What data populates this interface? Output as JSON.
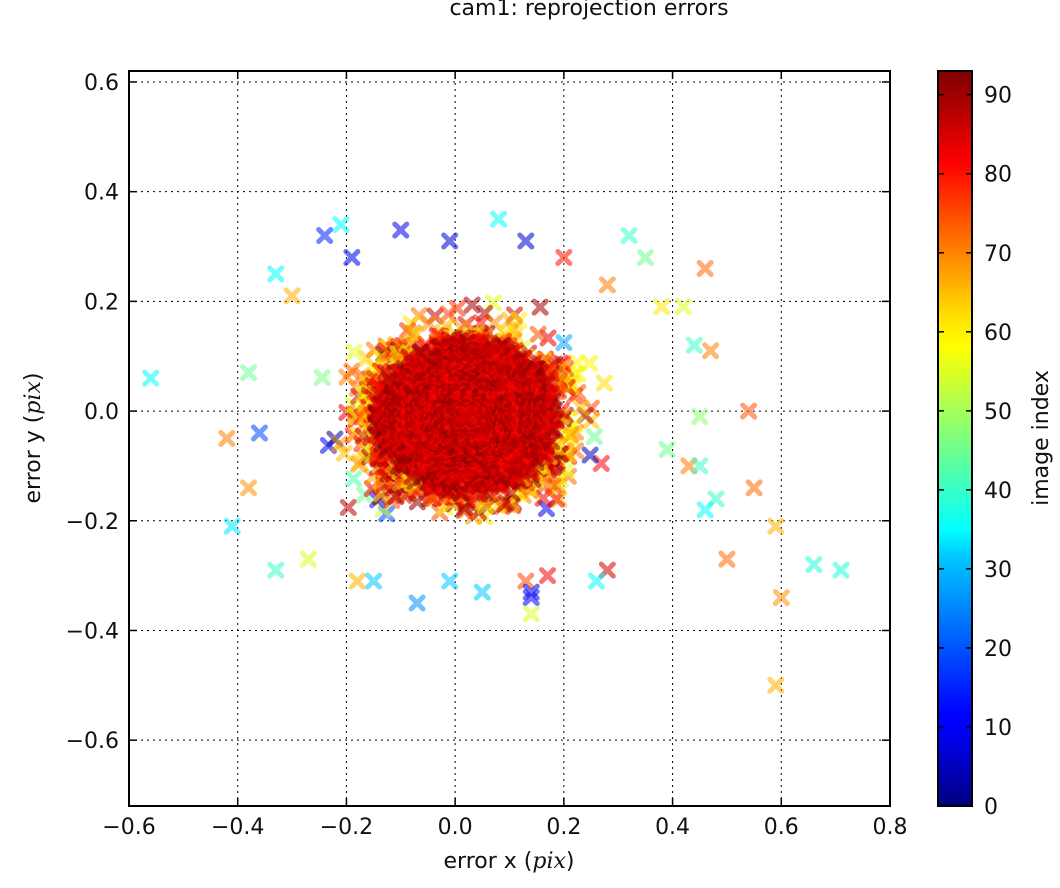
{
  "chart_data": {
    "type": "scatter",
    "title": "cam1: reprojection errors",
    "xlabel_prefix": "error x (",
    "xlabel_unit": "pix",
    "xlabel_suffix": ")",
    "ylabel_prefix": "error y (",
    "ylabel_unit": "pix",
    "ylabel_suffix": ")",
    "xlim": [
      -0.6,
      0.8
    ],
    "ylim": [
      -0.72,
      0.62
    ],
    "xticks": [
      "−0.6",
      "−0.4",
      "−0.2",
      "0.0",
      "0.2",
      "0.4",
      "0.6",
      "0.8"
    ],
    "xtick_values": [
      -0.6,
      -0.4,
      -0.2,
      0.0,
      0.2,
      0.4,
      0.6,
      0.8
    ],
    "yticks": [
      "0.6",
      "0.4",
      "0.2",
      "0.0",
      "−0.2",
      "−0.4",
      "−0.6"
    ],
    "ytick_values": [
      0.6,
      0.4,
      0.2,
      0.0,
      -0.2,
      -0.4,
      -0.6
    ],
    "grid": true,
    "marker": "x",
    "colormap": "jet",
    "colorbar": {
      "label": "image index",
      "range": [
        0,
        93
      ],
      "ticks": [
        "0",
        "10",
        "20",
        "30",
        "40",
        "50",
        "60",
        "70",
        "80",
        "90"
      ],
      "tick_values": [
        0,
        10,
        20,
        30,
        40,
        50,
        60,
        70,
        80,
        90
      ]
    },
    "series": [
      {
        "points": [
          [
            -0.56,
            0.06,
            35
          ],
          [
            -0.41,
            -0.21,
            33
          ],
          [
            -0.42,
            -0.05,
            70
          ],
          [
            -0.38,
            0.07,
            45
          ],
          [
            -0.33,
            0.25,
            35
          ],
          [
            -0.33,
            -0.29,
            40
          ],
          [
            -0.3,
            0.21,
            65
          ],
          [
            -0.27,
            -0.27,
            55
          ],
          [
            -0.24,
            0.32,
            15
          ],
          [
            -0.21,
            0.34,
            35
          ],
          [
            -0.19,
            0.28,
            10
          ],
          [
            -0.1,
            0.33,
            10
          ],
          [
            -0.07,
            -0.35,
            25
          ],
          [
            -0.01,
            0.31,
            8
          ],
          [
            0.08,
            0.35,
            35
          ],
          [
            0.13,
            0.31,
            8
          ],
          [
            0.2,
            0.28,
            80
          ],
          [
            0.28,
            0.23,
            70
          ],
          [
            0.32,
            0.32,
            40
          ],
          [
            0.35,
            0.28,
            45
          ],
          [
            0.38,
            0.19,
            60
          ],
          [
            0.42,
            0.19,
            55
          ],
          [
            0.44,
            0.12,
            40
          ],
          [
            0.46,
            0.26,
            72
          ],
          [
            0.47,
            0.11,
            70
          ],
          [
            0.45,
            -0.01,
            48
          ],
          [
            0.39,
            -0.07,
            45
          ],
          [
            0.43,
            -0.1,
            70
          ],
          [
            0.45,
            -0.1,
            40
          ],
          [
            0.48,
            -0.16,
            40
          ],
          [
            0.54,
            0.0,
            74
          ],
          [
            0.55,
            -0.14,
            72
          ],
          [
            0.46,
            -0.18,
            35
          ],
          [
            0.5,
            -0.27,
            72
          ],
          [
            0.59,
            -0.21,
            65
          ],
          [
            0.6,
            -0.34,
            68
          ],
          [
            0.59,
            -0.5,
            65
          ],
          [
            0.66,
            -0.28,
            38
          ],
          [
            0.71,
            -0.29,
            38
          ],
          [
            0.28,
            -0.29,
            85
          ],
          [
            0.26,
            -0.31,
            35
          ],
          [
            0.17,
            -0.3,
            82
          ],
          [
            0.13,
            -0.31,
            75
          ],
          [
            0.14,
            -0.33,
            10
          ],
          [
            0.14,
            -0.34,
            12
          ],
          [
            0.14,
            -0.37,
            55
          ],
          [
            0.05,
            -0.33,
            30
          ],
          [
            -0.01,
            -0.31,
            30
          ],
          [
            -0.18,
            -0.31,
            65
          ],
          [
            -0.15,
            -0.31,
            30
          ],
          [
            -0.36,
            -0.04,
            18
          ],
          [
            -0.38,
            -0.14,
            68
          ]
        ]
      }
    ]
  }
}
